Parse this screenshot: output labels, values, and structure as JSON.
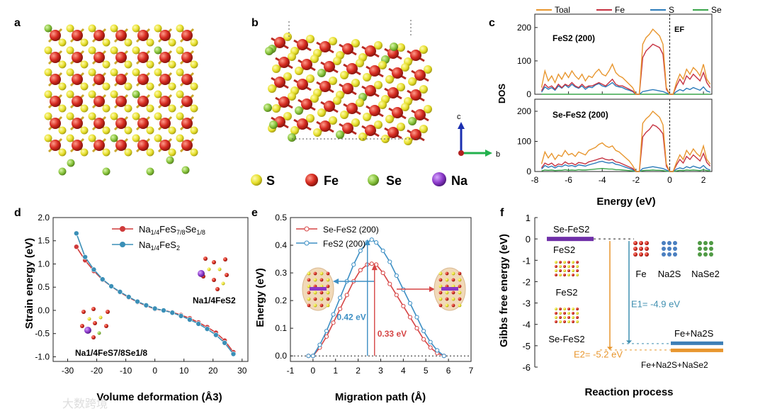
{
  "panels": {
    "a": "a",
    "b": "b",
    "c": "c",
    "d": "d",
    "e": "e",
    "f": "f"
  },
  "colors": {
    "S": "#e6df2a",
    "Fe": "#d62b20",
    "Se": "#86c23a",
    "Na": "#8a38c8",
    "total": "#e8962e",
    "fe_dos": "#c63241",
    "s_dos": "#2b7bba",
    "se_dos": "#3aa54a",
    "d_red": "#cf3a3a",
    "d_blue": "#3a8fb7",
    "e_red": "#d64545",
    "e_blue": "#3d8fc4",
    "f_purple": "#6f2fa8",
    "f_teal": "#3f8fb0",
    "f_orange": "#e8962e",
    "f_blue_bar": "#3d7fb6"
  },
  "legend_atoms": [
    {
      "symbol": "S",
      "label": "S"
    },
    {
      "symbol": "Fe",
      "label": "Fe"
    },
    {
      "symbol": "Se",
      "label": "Se"
    },
    {
      "symbol": "Na",
      "label": "Na"
    }
  ],
  "axes_triad": {
    "c": "c",
    "b": "b"
  },
  "chart_data": [
    {
      "id": "c-top",
      "type": "line",
      "panel_label": "FeS2 (200)",
      "fermi_label": "EF",
      "xlabel": "Energy (eV)",
      "ylabel": "DOS",
      "xlim": [
        -8,
        2.5
      ],
      "ylim": [
        0,
        240
      ],
      "xticks": [
        -8,
        -6,
        -4,
        -2,
        0,
        2
      ],
      "yticks": [
        0,
        100,
        200
      ],
      "legend": [
        "Toal",
        "Fe",
        "S",
        "Se"
      ],
      "x": [
        -7.6,
        -7.4,
        -7.2,
        -7.0,
        -6.8,
        -6.6,
        -6.4,
        -6.2,
        -6.0,
        -5.8,
        -5.6,
        -5.4,
        -5.2,
        -5.0,
        -4.8,
        -4.6,
        -4.4,
        -4.2,
        -4.0,
        -3.8,
        -3.6,
        -3.4,
        -3.2,
        -3.0,
        -2.8,
        -2.6,
        -2.4,
        -2.2,
        -2.0,
        -1.8,
        -1.6,
        -1.4,
        -1.2,
        -1.0,
        -0.8,
        -0.6,
        -0.4,
        -0.2,
        0.0,
        0.2,
        0.4,
        0.6,
        0.8,
        1.0,
        1.2,
        1.4,
        1.6,
        1.8,
        2.0,
        2.2,
        2.4
      ],
      "series": [
        {
          "name": "Toal",
          "values": [
            20,
            70,
            40,
            55,
            35,
            60,
            45,
            65,
            50,
            70,
            55,
            45,
            60,
            40,
            55,
            50,
            65,
            75,
            60,
            55,
            70,
            90,
            65,
            55,
            50,
            40,
            30,
            20,
            0,
            0,
            150,
            170,
            180,
            195,
            185,
            175,
            150,
            20,
            0,
            0,
            35,
            60,
            45,
            75,
            60,
            80,
            70,
            55,
            90,
            45,
            30
          ]
        },
        {
          "name": "Fe",
          "values": [
            10,
            30,
            20,
            25,
            15,
            30,
            20,
            30,
            25,
            35,
            25,
            20,
            30,
            20,
            25,
            25,
            30,
            35,
            30,
            25,
            35,
            45,
            30,
            25,
            25,
            20,
            15,
            10,
            0,
            0,
            110,
            130,
            140,
            150,
            145,
            140,
            120,
            15,
            0,
            0,
            25,
            45,
            30,
            55,
            45,
            60,
            50,
            40,
            65,
            35,
            20
          ]
        },
        {
          "name": "S",
          "values": [
            6,
            22,
            15,
            20,
            12,
            25,
            18,
            28,
            20,
            30,
            22,
            18,
            25,
            15,
            22,
            20,
            28,
            32,
            25,
            22,
            28,
            35,
            25,
            22,
            20,
            15,
            12,
            8,
            0,
            0,
            8,
            10,
            12,
            14,
            12,
            10,
            8,
            4,
            0,
            0,
            8,
            14,
            10,
            18,
            14,
            20,
            16,
            12,
            22,
            10,
            6
          ]
        },
        {
          "name": "Se",
          "values": [
            0,
            0,
            0,
            0,
            0,
            0,
            0,
            0,
            0,
            0,
            0,
            0,
            0,
            0,
            0,
            0,
            0,
            0,
            0,
            0,
            0,
            0,
            0,
            0,
            0,
            0,
            0,
            0,
            0,
            0,
            0,
            0,
            0,
            0,
            0,
            0,
            0,
            0,
            0,
            0,
            0,
            0,
            0,
            0,
            0,
            0,
            0,
            0,
            0,
            0,
            0
          ]
        }
      ]
    },
    {
      "id": "c-bottom",
      "type": "line",
      "panel_label": "Se-FeS2 (200)",
      "xlabel": "Energy (eV)",
      "ylabel": "DOS",
      "xlim": [
        -8,
        2.5
      ],
      "ylim": [
        0,
        240
      ],
      "xticks": [
        -8,
        -6,
        -4,
        -2,
        0,
        2
      ],
      "yticks": [
        0,
        100,
        200
      ],
      "x": [
        -7.6,
        -7.4,
        -7.2,
        -7.0,
        -6.8,
        -6.6,
        -6.4,
        -6.2,
        -6.0,
        -5.8,
        -5.6,
        -5.4,
        -5.2,
        -5.0,
        -4.8,
        -4.6,
        -4.4,
        -4.2,
        -4.0,
        -3.8,
        -3.6,
        -3.4,
        -3.2,
        -3.0,
        -2.8,
        -2.6,
        -2.4,
        -2.2,
        -2.0,
        -1.8,
        -1.6,
        -1.4,
        -1.2,
        -1.0,
        -0.8,
        -0.6,
        -0.4,
        -0.2,
        0.0,
        0.2,
        0.4,
        0.6,
        0.8,
        1.0,
        1.2,
        1.4,
        1.6,
        1.8,
        2.0,
        2.2,
        2.4
      ],
      "series": [
        {
          "name": "Toal",
          "values": [
            25,
            65,
            45,
            60,
            40,
            55,
            50,
            70,
            55,
            60,
            50,
            65,
            60,
            55,
            70,
            75,
            80,
            90,
            95,
            85,
            80,
            85,
            70,
            65,
            55,
            45,
            35,
            20,
            0,
            0,
            160,
            175,
            185,
            200,
            190,
            180,
            155,
            25,
            0,
            0,
            30,
            55,
            40,
            70,
            55,
            75,
            60,
            50,
            85,
            40,
            25
          ]
        },
        {
          "name": "Fe",
          "values": [
            12,
            28,
            22,
            28,
            18,
            25,
            22,
            32,
            25,
            28,
            22,
            30,
            28,
            25,
            32,
            35,
            38,
            42,
            45,
            40,
            38,
            40,
            32,
            30,
            25,
            20,
            15,
            10,
            0,
            0,
            115,
            130,
            140,
            155,
            150,
            140,
            125,
            18,
            0,
            0,
            22,
            40,
            28,
            50,
            40,
            55,
            45,
            35,
            60,
            30,
            18
          ]
        },
        {
          "name": "S",
          "values": [
            8,
            20,
            14,
            18,
            12,
            18,
            16,
            22,
            18,
            20,
            16,
            22,
            20,
            18,
            22,
            25,
            28,
            32,
            34,
            30,
            28,
            30,
            24,
            22,
            18,
            14,
            10,
            6,
            0,
            0,
            10,
            12,
            14,
            16,
            14,
            12,
            10,
            5,
            0,
            0,
            8,
            12,
            9,
            16,
            12,
            18,
            14,
            11,
            20,
            9,
            5
          ]
        },
        {
          "name": "Se",
          "values": [
            2,
            5,
            4,
            5,
            3,
            4,
            4,
            6,
            4,
            5,
            4,
            6,
            5,
            5,
            6,
            7,
            8,
            9,
            10,
            9,
            8,
            8,
            6,
            6,
            5,
            4,
            3,
            2,
            0,
            0,
            3,
            4,
            4,
            5,
            4,
            4,
            3,
            1,
            0,
            0,
            2,
            4,
            3,
            5,
            4,
            5,
            4,
            3,
            6,
            3,
            2
          ]
        }
      ]
    },
    {
      "id": "d",
      "type": "line",
      "xlabel": "Volume deformation (Å3)",
      "ylabel": "Strain energy (eV)",
      "xlim": [
        -35,
        32
      ],
      "ylim": [
        -1.1,
        2.0
      ],
      "xticks": [
        -30,
        -20,
        -10,
        0,
        10,
        20,
        30
      ],
      "yticks": [
        -1.0,
        -0.5,
        0.0,
        0.5,
        1.0,
        1.5,
        2.0
      ],
      "series": [
        {
          "name": "Na1/4FeS7/8Se1/8",
          "x": [
            -27,
            -24,
            -21,
            -18,
            -15,
            -12,
            -9,
            -6,
            -3,
            0,
            3,
            6,
            9,
            12,
            15,
            18,
            21,
            24,
            27
          ],
          "values": [
            1.37,
            1.08,
            0.85,
            0.66,
            0.52,
            0.39,
            0.28,
            0.18,
            0.1,
            0.03,
            0.0,
            -0.04,
            -0.1,
            -0.17,
            -0.26,
            -0.36,
            -0.48,
            -0.65,
            -0.9
          ]
        },
        {
          "name": "Na1/4FeS2",
          "x": [
            -27,
            -24,
            -21,
            -18,
            -15,
            -12,
            -9,
            -6,
            -3,
            0,
            3,
            6,
            9,
            12,
            15,
            18,
            21,
            24,
            27
          ],
          "values": [
            1.66,
            1.15,
            0.88,
            0.67,
            0.52,
            0.4,
            0.29,
            0.19,
            0.11,
            0.04,
            0.0,
            -0.05,
            -0.12,
            -0.2,
            -0.29,
            -0.4,
            -0.53,
            -0.7,
            -0.94
          ]
        }
      ],
      "annotations": [
        "Na1/4FeS2",
        "Na1/4FeS7/8Se1/8"
      ]
    },
    {
      "id": "e",
      "type": "line",
      "xlabel": "Migration path (Å)",
      "ylabel": "Energy (eV)",
      "xlim": [
        -1,
        7
      ],
      "ylim": [
        -0.02,
        0.5
      ],
      "xticks": [
        -1,
        0,
        1,
        2,
        3,
        4,
        5,
        6,
        7
      ],
      "yticks": [
        0.0,
        0.1,
        0.2,
        0.3,
        0.4,
        0.5
      ],
      "series": [
        {
          "name": "Se-FeS2 (200)",
          "x": [
            -0.2,
            0.0,
            0.3,
            0.6,
            0.9,
            1.2,
            1.5,
            1.8,
            2.1,
            2.4,
            2.6,
            2.8,
            3.1,
            3.4,
            3.7,
            4.0,
            4.3,
            4.6,
            4.9,
            5.2,
            5.5,
            5.8
          ],
          "values": [
            0.0,
            0.0,
            0.03,
            0.07,
            0.12,
            0.17,
            0.22,
            0.27,
            0.31,
            0.33,
            0.333,
            0.33,
            0.3,
            0.26,
            0.22,
            0.18,
            0.14,
            0.1,
            0.06,
            0.03,
            0.01,
            0.0
          ]
        },
        {
          "name": "FeS2 (200)",
          "x": [
            -0.2,
            0.0,
            0.3,
            0.6,
            0.9,
            1.2,
            1.5,
            1.8,
            2.1,
            2.4,
            2.6,
            2.8,
            3.1,
            3.4,
            3.7,
            4.0,
            4.3,
            4.6,
            4.9,
            5.2,
            5.5,
            5.8
          ],
          "values": [
            0.0,
            0.0,
            0.04,
            0.09,
            0.15,
            0.21,
            0.27,
            0.33,
            0.38,
            0.41,
            0.42,
            0.41,
            0.38,
            0.34,
            0.29,
            0.24,
            0.19,
            0.14,
            0.09,
            0.05,
            0.02,
            0.0
          ]
        }
      ],
      "annotations": [
        "0.42 eV",
        "0.33 eV"
      ]
    },
    {
      "id": "f",
      "type": "diagram",
      "xlabel": "Reaction process",
      "ylabel": "Gibbs free energy (eV)",
      "ylim": [
        -6,
        1
      ],
      "yticks": [
        1,
        0,
        -1,
        -2,
        -3,
        -4,
        -5,
        -6
      ],
      "levels": [
        {
          "label_top": "Se-FeS2",
          "label_bottom": "FeS2",
          "y": 0.0
        },
        {
          "label": "Fe+Na2S",
          "y": -4.9
        },
        {
          "label": "Fe+Na2S+NaSe2",
          "y": -5.2
        }
      ],
      "energies": [
        {
          "label": "E1= -4.9 eV",
          "value": -4.9
        },
        {
          "label": "E2= -5.2 eV",
          "value": -5.2
        }
      ],
      "products": [
        "Fe",
        "Na2S",
        "NaSe2"
      ],
      "structures": [
        "FeS2",
        "Se-FeS2"
      ]
    }
  ],
  "watermark": "大数跨境"
}
